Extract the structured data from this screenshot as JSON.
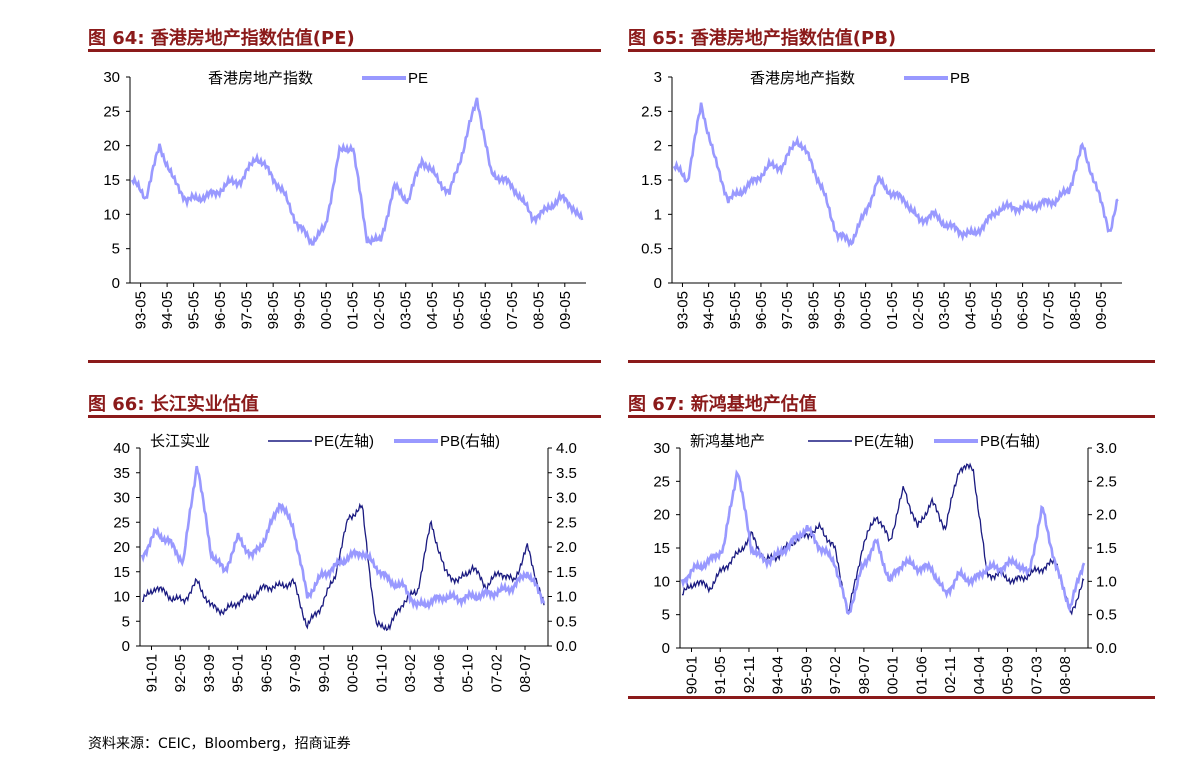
{
  "source": "资料来源：CEIC，Bloomberg，招商证券",
  "panels": [
    {
      "title": "图  64:  香港房地产指数估值(PE)",
      "chart_data": {
        "type": "line",
        "title": "",
        "annotation": "香港房地产指数",
        "legend": "top",
        "grid": false,
        "ylim": [
          0,
          30
        ],
        "yticks": [
          "0",
          "5",
          "10",
          "15",
          "20",
          "25",
          "30"
        ],
        "xticks": [
          "93-05",
          "94-05",
          "95-05",
          "96-05",
          "97-05",
          "98-05",
          "99-05",
          "00-05",
          "01-05",
          "02-05",
          "03-05",
          "04-05",
          "05-05",
          "06-05",
          "07-05",
          "08-05",
          "09-05"
        ],
        "series": [
          {
            "name": "PE",
            "color": "#9999ff",
            "axis": "left",
            "x": [
              0,
              0.5,
              1,
              1.5,
              2,
              2.5,
              3,
              3.5,
              4,
              4.5,
              5,
              5.5,
              6,
              6.5,
              7,
              7.5,
              8,
              8.5,
              9,
              9.5,
              10,
              10.5,
              11,
              11.5,
              12,
              12.5,
              13,
              13.5,
              14,
              14.5,
              15,
              15.5,
              16,
              16.3
            ],
            "values": [
              15,
              12.5,
              20,
              15,
              12,
              12.5,
              13,
              14.5,
              15,
              18.5,
              16,
              13,
              8.5,
              6,
              8,
              19,
              20,
              6.5,
              6,
              14,
              12,
              18,
              15.5,
              13,
              19.5,
              27,
              16,
              15,
              13,
              9.5,
              10.5,
              12.5,
              11,
              9
            ]
          }
        ]
      }
    },
    {
      "title": "图  65:  香港房地产指数估值(PB)",
      "chart_data": {
        "type": "line",
        "title": "",
        "annotation": "香港房地产指数",
        "legend": "top",
        "grid": false,
        "ylim": [
          0,
          3
        ],
        "yticks": [
          "0",
          "0.5",
          "1",
          "1.5",
          "2",
          "2.5",
          "3"
        ],
        "xticks": [
          "93-05",
          "94-05",
          "95-05",
          "96-05",
          "97-05",
          "98-05",
          "99-05",
          "00-05",
          "01-05",
          "02-05",
          "03-05",
          "04-05",
          "05-05",
          "06-05",
          "07-05",
          "08-05",
          "09-05"
        ],
        "series": [
          {
            "name": "PB",
            "color": "#9999ff",
            "axis": "left",
            "x": [
              0,
              0.5,
              1,
              1.5,
              2,
              2.5,
              3,
              3.5,
              4,
              4.5,
              5,
              5.5,
              6,
              6.5,
              7,
              7.5,
              8,
              8.5,
              9,
              9.5,
              10,
              10.5,
              11,
              11.5,
              12,
              12.5,
              13,
              13.5,
              14,
              14.5,
              15,
              15.5,
              16,
              16.3
            ],
            "values": [
              1.7,
              1.5,
              2.6,
              1.8,
              1.2,
              1.35,
              1.5,
              1.7,
              1.7,
              2.1,
              1.8,
              1.3,
              0.7,
              0.6,
              1.0,
              1.5,
              1.3,
              1.2,
              0.9,
              1.0,
              0.85,
              0.75,
              0.7,
              0.9,
              1.1,
              1.1,
              1.1,
              1.15,
              1.2,
              1.35,
              2.0,
              1.4,
              0.75,
              1.2
            ]
          }
        ]
      }
    },
    {
      "title": "图  66:  长江实业估值",
      "chart_data": {
        "type": "line",
        "title": "",
        "annotation": "长江实业",
        "legend": "top",
        "grid": false,
        "ylim": [
          0,
          40
        ],
        "y2lim": [
          0,
          4
        ],
        "yticks": [
          "0",
          "5",
          "10",
          "15",
          "20",
          "25",
          "30",
          "35",
          "40"
        ],
        "y2ticks": [
          "0.0",
          "0.5",
          "1.0",
          "1.5",
          "2.0",
          "2.5",
          "3.0",
          "3.5",
          "4.0"
        ],
        "xticks": [
          "91-01",
          "92-05",
          "93-09",
          "95-01",
          "96-05",
          "97-09",
          "99-01",
          "00-05",
          "01-10",
          "03-02",
          "04-06",
          "05-10",
          "07-02",
          "08-07"
        ],
        "series": [
          {
            "name": "PE(左轴)",
            "color": "#1a1a80",
            "axis": "left",
            "x": [
              0,
              0.5,
              1,
              1.5,
              2,
              2.5,
              3,
              3.5,
              4,
              4.5,
              5,
              5.5,
              6,
              6.5,
              7,
              7.5,
              8,
              8.5,
              9,
              9.5,
              10,
              10.5,
              11,
              11.5,
              12,
              12.5,
              13,
              13.5,
              14,
              14.6
            ],
            "values": [
              9,
              12,
              10,
              9,
              13,
              8,
              7,
              9,
              10,
              12,
              12,
              13,
              4,
              8,
              14,
              26,
              28,
              4,
              4,
              9,
              11,
              25,
              15,
              13,
              16,
              12,
              15,
              13,
              20,
              8
            ]
          },
          {
            "name": "PB(右轴)",
            "color": "#9999ff",
            "axis": "right",
            "x": [
              0,
              0.5,
              1,
              1.5,
              2,
              2.5,
              3,
              3.5,
              4,
              4.5,
              5,
              5.5,
              6,
              6.5,
              7,
              7.5,
              8,
              8.5,
              9,
              9.5,
              10,
              10.5,
              11,
              11.5,
              12,
              12.5,
              13,
              13.5,
              14,
              14.6
            ],
            "values": [
              1.8,
              2.3,
              2.1,
              1.7,
              3.7,
              1.9,
              1.5,
              2.2,
              1.8,
              2.2,
              2.9,
              2.4,
              1.0,
              1.4,
              1.6,
              1.8,
              1.9,
              1.6,
              1.3,
              1.2,
              0.8,
              0.9,
              1.0,
              0.95,
              1.0,
              1.05,
              1.1,
              1.2,
              1.5,
              0.9
            ]
          }
        ]
      }
    },
    {
      "title": "图  67:  新鸿基地产估值",
      "chart_data": {
        "type": "line",
        "title": "",
        "annotation": "新鸿基地产",
        "legend": "top",
        "grid": false,
        "ylim": [
          0,
          30
        ],
        "y2lim": [
          0,
          3
        ],
        "yticks": [
          "0",
          "5",
          "10",
          "15",
          "20",
          "25",
          "30"
        ],
        "y2ticks": [
          "0.0",
          "0.5",
          "1.0",
          "1.5",
          "2.0",
          "2.5",
          "3.0"
        ],
        "xticks": [
          "90-01",
          "91-05",
          "92-11",
          "94-04",
          "95-09",
          "97-02",
          "98-07",
          "00-01",
          "01-06",
          "02-11",
          "04-04",
          "05-09",
          "07-03",
          "08-08"
        ],
        "series": [
          {
            "name": "PE(左轴)",
            "color": "#1a1a80",
            "axis": "left",
            "x": [
              0,
              0.5,
              1,
              1.5,
              2,
              2.5,
              3,
              3.5,
              4,
              4.5,
              5,
              5.5,
              6,
              6.5,
              7,
              7.5,
              8,
              8.5,
              9,
              9.5,
              10,
              10.5,
              11,
              11.5,
              12,
              12.5,
              13,
              13.5,
              14,
              14.5
            ],
            "values": [
              8,
              10,
              9,
              12,
              14,
              17,
              13,
              14,
              16,
              17,
              18,
              15,
              5,
              15,
              20,
              16,
              24,
              18,
              22,
              18,
              27,
              27,
              11,
              11,
              10,
              11,
              12,
              13,
              5,
              10
            ]
          },
          {
            "name": "PB(右轴)",
            "color": "#9999ff",
            "axis": "right",
            "x": [
              0,
              0.5,
              1,
              1.5,
              2,
              2.5,
              3,
              3.5,
              4,
              4.5,
              5,
              5.5,
              6,
              6.5,
              7,
              7.5,
              8,
              8.5,
              9,
              9.5,
              10,
              10.5,
              11,
              11.5,
              12,
              12.5,
              13,
              13.5,
              14,
              14.5
            ],
            "values": [
              1.0,
              1.2,
              1.3,
              1.5,
              2.7,
              1.5,
              1.3,
              1.4,
              1.6,
              1.8,
              1.5,
              1.3,
              0.5,
              1.2,
              1.6,
              1.0,
              1.3,
              1.2,
              1.2,
              0.8,
              1.1,
              1.0,
              1.2,
              1.2,
              1.3,
              1.1,
              2.1,
              1.2,
              0.6,
              1.3
            ]
          }
        ]
      }
    }
  ]
}
